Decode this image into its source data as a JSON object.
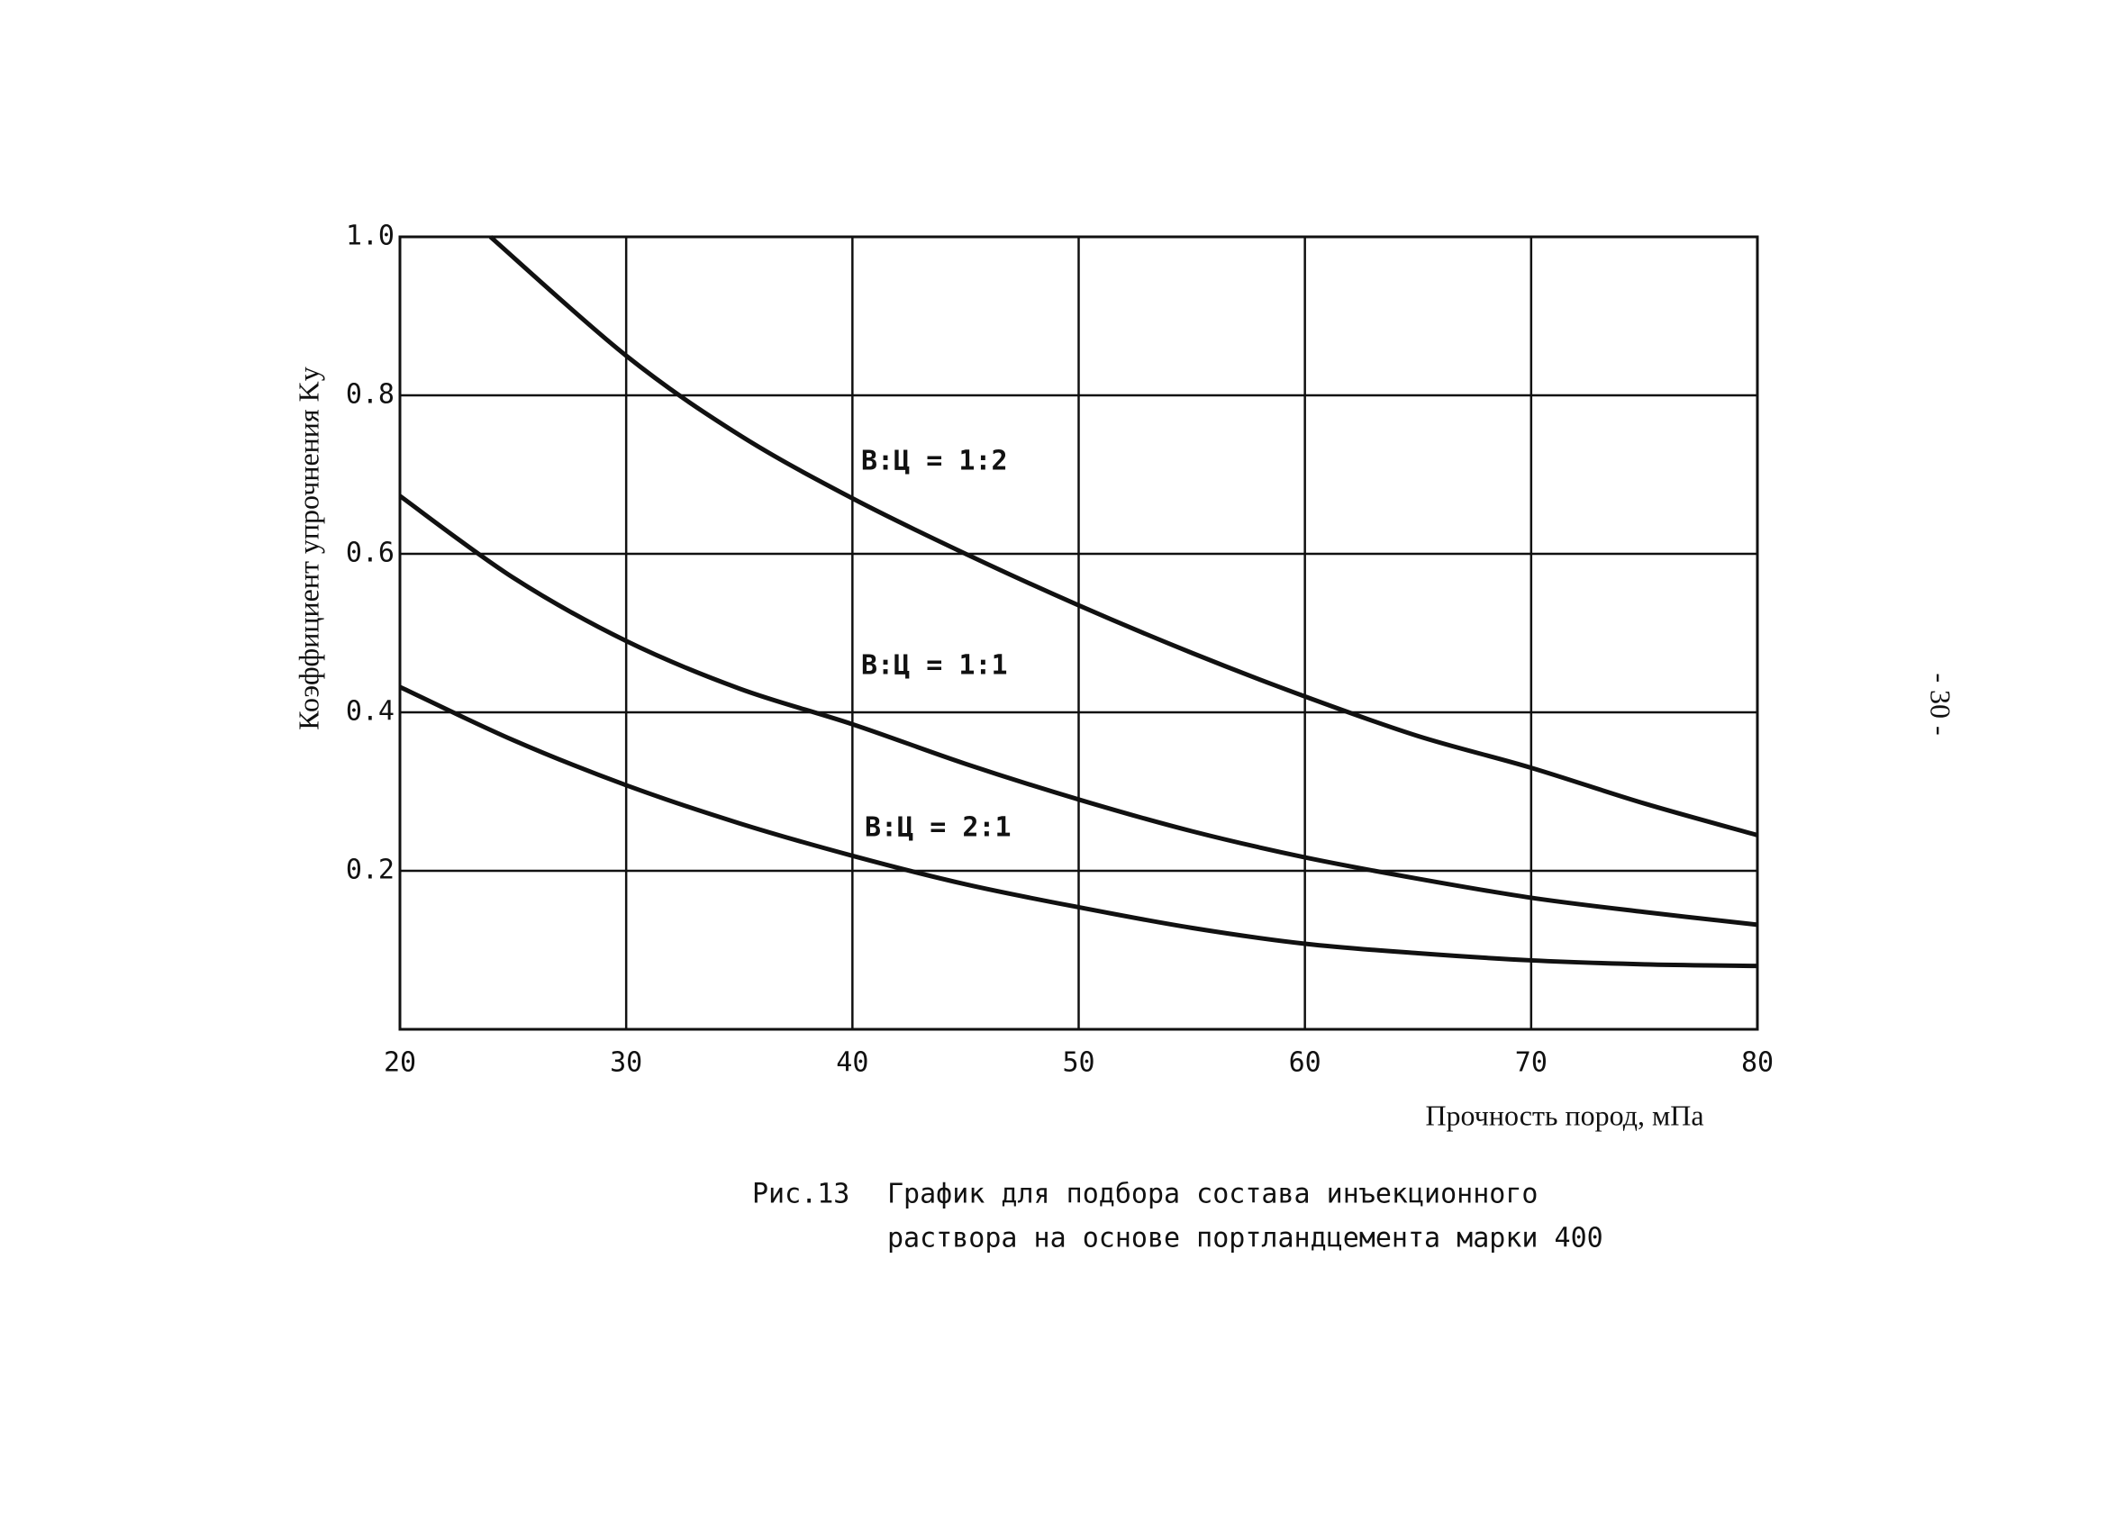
{
  "chart_data": {
    "type": "line",
    "x_label": "Прочность пород, мПа",
    "y_label": "Коэффициент упрочнения Kу",
    "xlim": [
      20,
      80
    ],
    "xticks": [
      20,
      30,
      40,
      50,
      60,
      70,
      80
    ],
    "ylim": [
      0,
      1.0
    ],
    "yticks": [
      {
        "value": 1.0,
        "label": "1.0"
      },
      0.8,
      0.6,
      0.4,
      0.2
    ],
    "grid": true,
    "color": "#111111",
    "series": [
      {
        "name": "В:Ц = 1:2",
        "x": [
          24,
          30,
          35,
          40,
          45,
          50,
          55,
          60,
          65,
          70,
          75,
          80
        ],
        "values": [
          1.0,
          0.85,
          0.75,
          0.67,
          0.6,
          0.535,
          0.475,
          0.42,
          0.37,
          0.33,
          0.285,
          0.245
        ]
      },
      {
        "name": "В:Ц = 1:1",
        "x": [
          20,
          25,
          30,
          35,
          40,
          45,
          50,
          55,
          60,
          65,
          70,
          75,
          80
        ],
        "values": [
          0.673,
          0.57,
          0.49,
          0.43,
          0.385,
          0.335,
          0.29,
          0.25,
          0.217,
          0.19,
          0.166,
          0.148,
          0.132
        ]
      },
      {
        "name": "В:Ц = 2:1",
        "x": [
          20,
          25,
          30,
          35,
          40,
          45,
          50,
          55,
          60,
          65,
          70,
          75,
          80
        ],
        "values": [
          0.432,
          0.365,
          0.308,
          0.26,
          0.219,
          0.183,
          0.154,
          0.128,
          0.108,
          0.096,
          0.087,
          0.082,
          0.08
        ]
      }
    ]
  },
  "caption": {
    "figure": "Рис.13",
    "lines": [
      "График для подбора состава инъекционного",
      "раствора на основе портландцемента марки 400"
    ]
  },
  "page_number": "- 30 -"
}
